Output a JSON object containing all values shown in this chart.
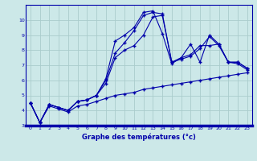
{
  "xlabel": "Graphe des températures (°c)",
  "xlim": [
    0,
    23
  ],
  "ylim": [
    3,
    11
  ],
  "yticks": [
    3,
    4,
    5,
    6,
    7,
    8,
    9,
    10
  ],
  "xticks": [
    0,
    1,
    2,
    3,
    4,
    5,
    6,
    7,
    8,
    9,
    10,
    11,
    12,
    13,
    14,
    15,
    16,
    17,
    18,
    19,
    20,
    21,
    22,
    23
  ],
  "bg_color": "#cce8e8",
  "grid_color": "#aacccc",
  "line_color": "#0000aa",
  "lines": [
    [
      4.5,
      3.2,
      4.4,
      4.2,
      4.0,
      4.6,
      4.7,
      5.0,
      6.1,
      8.6,
      9.0,
      9.5,
      10.5,
      10.6,
      9.1,
      7.1,
      7.5,
      8.4,
      7.2,
      9.0,
      8.4,
      7.2,
      7.2,
      6.8
    ],
    [
      4.5,
      3.2,
      4.4,
      4.2,
      4.0,
      4.6,
      4.7,
      5.0,
      6.0,
      7.8,
      8.5,
      9.3,
      10.3,
      10.5,
      10.4,
      7.2,
      7.5,
      7.7,
      8.3,
      8.3,
      8.4,
      7.2,
      7.2,
      6.8
    ],
    [
      4.5,
      3.2,
      4.4,
      4.2,
      4.0,
      4.6,
      4.7,
      5.0,
      5.8,
      7.5,
      8.0,
      8.3,
      9.0,
      10.2,
      10.3,
      7.2,
      7.4,
      7.6,
      8.1,
      8.9,
      8.3,
      7.2,
      7.1,
      6.7
    ],
    [
      4.5,
      3.2,
      4.3,
      4.1,
      3.9,
      4.3,
      4.4,
      4.6,
      4.8,
      5.0,
      5.1,
      5.2,
      5.4,
      5.5,
      5.6,
      5.7,
      5.8,
      5.9,
      6.0,
      6.1,
      6.2,
      6.3,
      6.4,
      6.5
    ]
  ]
}
